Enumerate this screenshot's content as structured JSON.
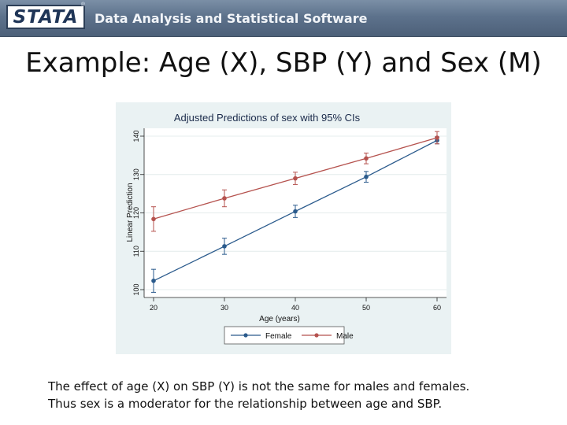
{
  "header": {
    "logo_text": "STATA",
    "registered_mark": "®",
    "tagline": "Data Analysis and Statistical Software"
  },
  "slide": {
    "title": "Example: Age (X), SBP (Y) and Sex (M)",
    "caption_line1": "The effect of age (X) on SBP (Y) is not the same for males and females.",
    "caption_line2": "Thus sex is a moderator for the relationship between age and SBP."
  },
  "chart_data": {
    "type": "line",
    "title": "Adjusted Predictions of sex with 95% CIs",
    "xlabel": "Age (years)",
    "ylabel": "Linear Prediction",
    "x": [
      20,
      30,
      40,
      50,
      60
    ],
    "xlim": [
      20,
      60
    ],
    "ylim": [
      100,
      140
    ],
    "x_ticks": [
      "20",
      "30",
      "40",
      "50",
      "60"
    ],
    "y_ticks": [
      "100",
      "110",
      "120",
      "130",
      "140"
    ],
    "grid": true,
    "legend_position": "bottom",
    "series": [
      {
        "name": "Female",
        "color": "#2a5a8c",
        "values": [
          102.3,
          111.3,
          120.4,
          129.4,
          138.9
        ],
        "ci_low": [
          99.3,
          109.2,
          118.8,
          128.0,
          138.0
        ],
        "ci_high": [
          105.3,
          113.4,
          122.0,
          130.8,
          139.8
        ]
      },
      {
        "name": "Male",
        "color": "#b5524e",
        "values": [
          118.4,
          123.8,
          129.0,
          134.2,
          139.6
        ],
        "ci_low": [
          115.2,
          121.6,
          127.4,
          132.8,
          138.0
        ],
        "ci_high": [
          121.6,
          126.0,
          130.6,
          135.6,
          141.2
        ]
      }
    ]
  }
}
